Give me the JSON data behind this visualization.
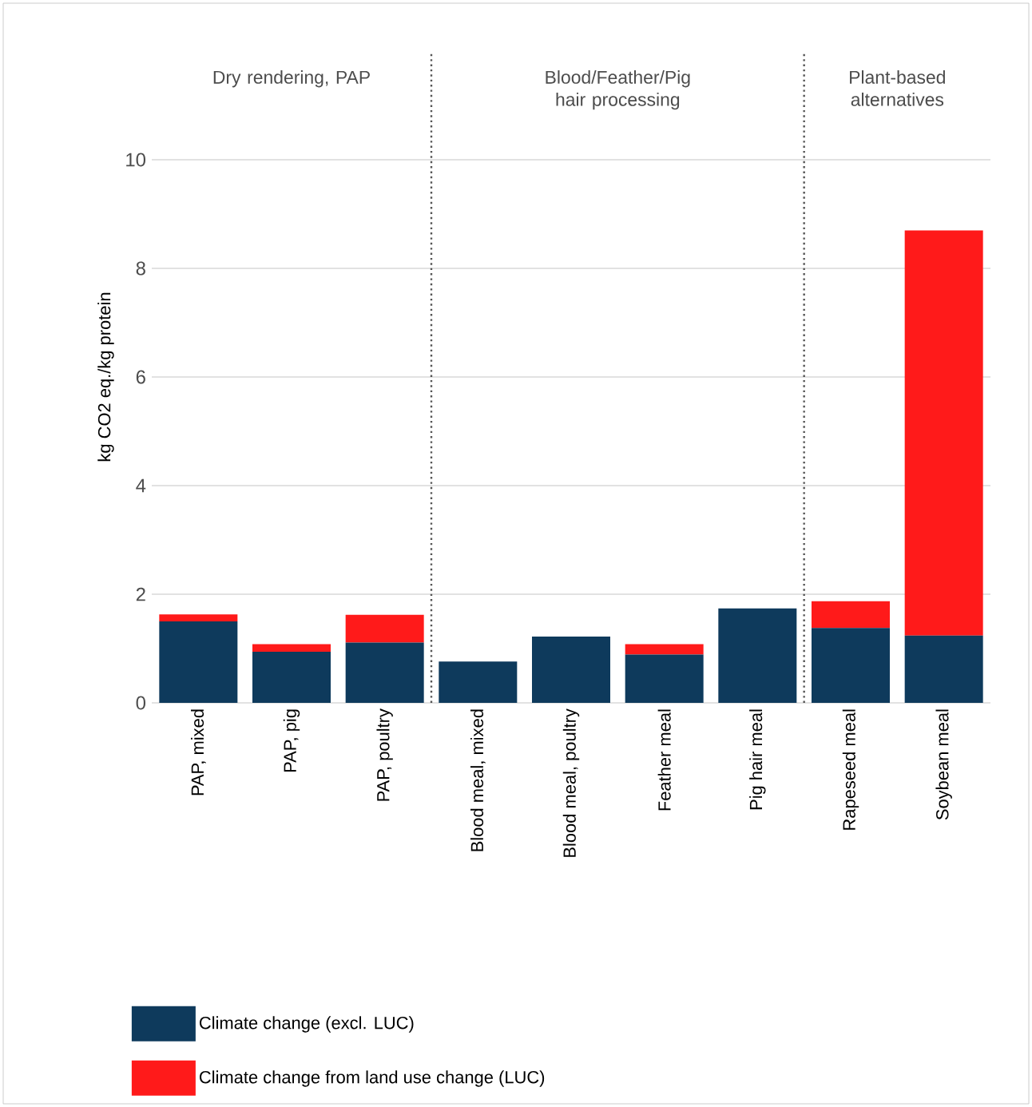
{
  "chart_data": {
    "type": "bar",
    "stacked": true,
    "categories": [
      "PAP, mixed",
      "PAP, pig",
      "PAP, poultry",
      "Blood meal, mixed",
      "Blood meal, poultry",
      "Feather meal",
      "Pig hair meal",
      "Rapeseed meal",
      "Soybean meal"
    ],
    "series": [
      {
        "name": "Climate change (excl. LUC)",
        "color": "#0e3a5c",
        "values": [
          1.5,
          0.94,
          1.11,
          0.76,
          1.22,
          0.89,
          1.74,
          1.38,
          1.24
        ]
      },
      {
        "name": "Climate change from land use change (LUC)",
        "color": "#ff1a1a",
        "values": [
          0.13,
          0.14,
          0.51,
          0,
          0,
          0.19,
          0,
          0.49,
          7.46
        ]
      }
    ],
    "ylabel": "kg CO2 eq./kg protein",
    "ylim": [
      0,
      12
    ],
    "yticks": [
      0,
      2,
      4,
      6,
      8,
      10
    ],
    "grid": "y",
    "legend": "bottom",
    "annotations": [
      "Dry rendering, PAP",
      "Blood/Feather/Pig hair processing",
      "Plant-based alternatives"
    ]
  }
}
